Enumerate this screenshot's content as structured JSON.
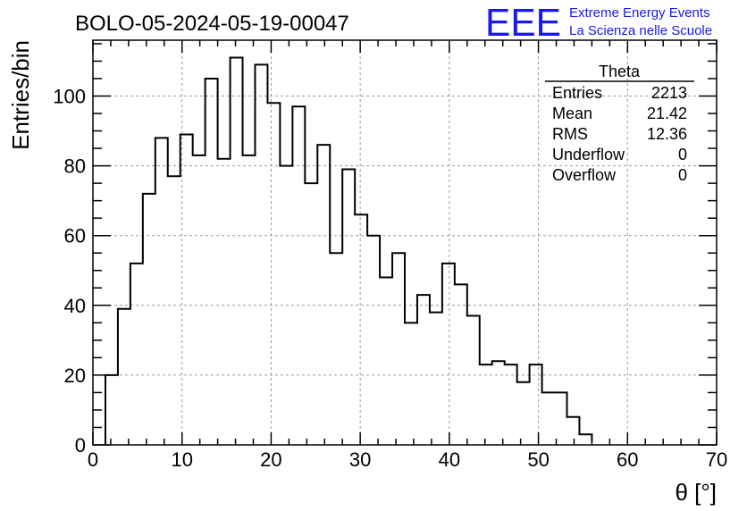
{
  "header": {
    "run_title": "BOLO-05-2024-05-19-00047",
    "logo_text": "EEE",
    "logo_line1": "Extreme Energy Events",
    "logo_line2": "La Scienza nelle Scuole"
  },
  "colors": {
    "logo": "#1a1ae6",
    "histogram": "#000000",
    "grid": "#9a9a9a"
  },
  "stats_box": {
    "title": "Theta",
    "rows": [
      {
        "label": "Entries",
        "value": "2213"
      },
      {
        "label": "Mean",
        "value": "21.42"
      },
      {
        "label": "RMS",
        "value": "12.36"
      },
      {
        "label": "Underflow",
        "value": "0"
      },
      {
        "label": "Overflow",
        "value": "0"
      }
    ]
  },
  "chart_data": {
    "type": "bar",
    "histogram": true,
    "xlabel": "θ [°]",
    "ylabel": "Entries/bin",
    "xlim": [
      0,
      70
    ],
    "ylim": [
      0,
      116
    ],
    "grid": true,
    "x_ticks": [
      0,
      10,
      20,
      30,
      40,
      50,
      60,
      70
    ],
    "y_ticks": [
      0,
      20,
      40,
      60,
      80,
      100
    ],
    "bin_edges": [
      1.4,
      2.8,
      4.2,
      5.6,
      7.0,
      8.4,
      9.8,
      11.2,
      12.6,
      14.0,
      15.4,
      16.8,
      18.2,
      19.6,
      21.0,
      22.4,
      23.8,
      25.2,
      26.6,
      28.0,
      29.4,
      30.8,
      32.2,
      33.6,
      35.0,
      36.4,
      37.8,
      39.2,
      40.6,
      42.0,
      43.4,
      44.8,
      46.2,
      47.6,
      49.0,
      50.4,
      51.8,
      53.2,
      54.6,
      56.0
    ],
    "values": [
      20,
      39,
      52,
      72,
      88,
      77,
      89,
      83,
      105,
      82,
      111,
      83,
      109,
      98,
      80,
      97,
      75,
      86,
      55,
      79,
      66,
      60,
      48,
      55,
      35,
      43,
      38,
      52,
      46,
      37,
      23,
      24,
      23,
      18,
      23,
      15,
      15,
      8,
      3,
      1
    ]
  }
}
